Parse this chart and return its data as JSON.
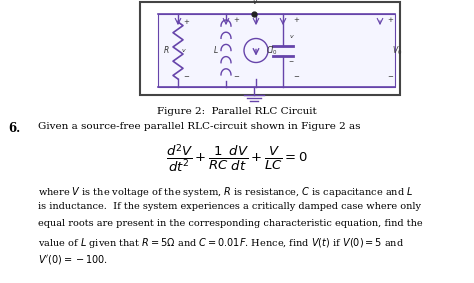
{
  "title": "Figure 2:  Parallel RLC Circuit",
  "problem_number": "6.",
  "problem_text": "Given a source-free parallel RLC-circuit shown in Figure 2 as",
  "body_text_line1": "where $V$ is the voltage of the system, $R$ is resistance, $C$ is capacitance and $L$",
  "body_text_line2": "is inductance.  If the system experiences a critically damped case where only",
  "body_text_line3": "equal roots are present in the corresponding characteristic equation, find the",
  "body_text_line4": "value of $L$ given that $R = 5\\Omega$ and $C = 0.01F$. Hence, find $V(t)$ if $V(0) = 5$ and",
  "body_text_line5": "$V^{\\prime}(0) = -100$.",
  "bg_color": "#ffffff",
  "text_color": "#000000",
  "fig_width": 4.74,
  "fig_height": 2.83,
  "dpi": 100,
  "circuit_color": "#6644aa",
  "box_color": "#444444"
}
